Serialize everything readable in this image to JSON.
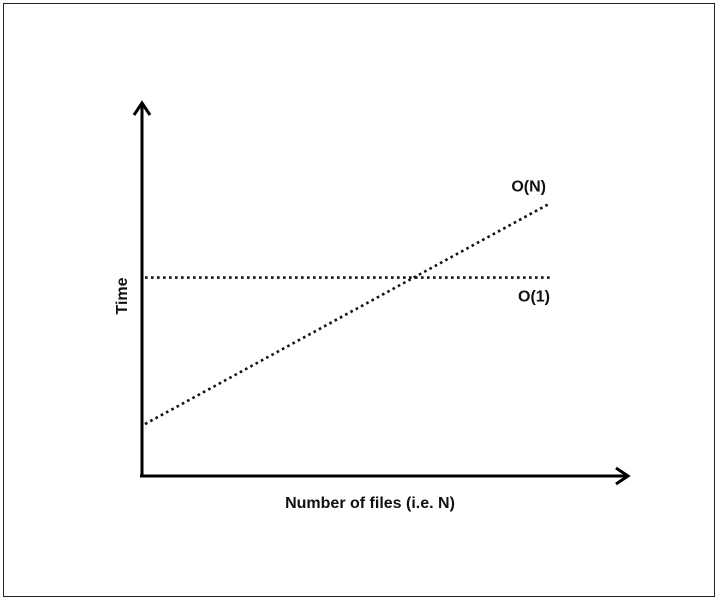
{
  "chart_data": {
    "type": "line",
    "title": "",
    "xlabel": "Number of files (i.e. N)",
    "ylabel": "Time",
    "xlim": [
      0,
      10
    ],
    "ylim": [
      0,
      10
    ],
    "grid": false,
    "legend": "none",
    "series": [
      {
        "name": "O(N)",
        "x": [
          0,
          10
        ],
        "y": [
          1.4,
          7.35
        ],
        "style": "dotted",
        "color": "#111111"
      },
      {
        "name": "O(1)",
        "x": [
          0,
          10
        ],
        "y": [
          5.35,
          5.35
        ],
        "style": "dotted",
        "color": "#111111"
      }
    ]
  }
}
